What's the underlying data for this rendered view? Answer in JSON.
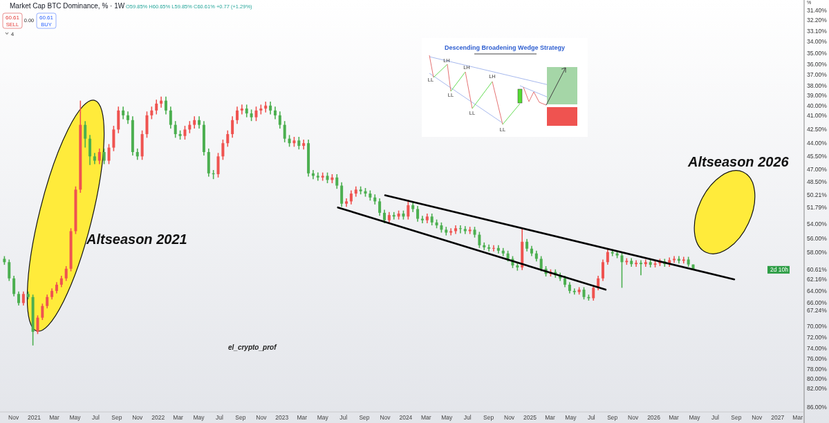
{
  "chart_data": {
    "type": "candlestick",
    "title": "Market Cap BTC Dominance, % · 1W",
    "subtitle": "O59.85% H60.65% L59.85% C60.61% +0.77 (+1.29%)",
    "ylabel": "%",
    "x": [
      "2020-10-05",
      "2020-10-19",
      "2020-11-02",
      "2020-11-16",
      "2020-11-30",
      "2020-12-14",
      "2020-12-28",
      "2021-01-11",
      "2021-01-25",
      "2021-02-08",
      "2021-02-22",
      "2021-03-08",
      "2021-03-22",
      "2021-04-05",
      "2021-04-19",
      "2021-05-03",
      "2021-05-17",
      "2021-05-31",
      "2021-06-14",
      "2021-06-28",
      "2021-07-12",
      "2021-07-26",
      "2021-08-09",
      "2021-08-23",
      "2021-09-06",
      "2021-09-20",
      "2021-10-04",
      "2021-10-18",
      "2021-11-01",
      "2021-11-15",
      "2021-11-29",
      "2021-12-13",
      "2021-12-27",
      "2022-01-10",
      "2022-01-24",
      "2022-02-07",
      "2022-02-21",
      "2022-03-07",
      "2022-03-21",
      "2022-04-04",
      "2022-04-18",
      "2022-05-02",
      "2022-05-16",
      "2022-05-30",
      "2022-06-13",
      "2022-06-27",
      "2022-07-11",
      "2022-07-25",
      "2022-08-08",
      "2022-08-22",
      "2022-09-05",
      "2022-09-19",
      "2022-10-03",
      "2022-10-17",
      "2022-10-31",
      "2022-11-14",
      "2022-11-28",
      "2022-12-12",
      "2022-12-26",
      "2023-01-09",
      "2023-01-23",
      "2023-02-06",
      "2023-02-20",
      "2023-03-06",
      "2023-03-20",
      "2023-04-03",
      "2023-04-17",
      "2023-05-01",
      "2023-05-15",
      "2023-05-29",
      "2023-06-12",
      "2023-06-26",
      "2023-07-10",
      "2023-07-24",
      "2023-08-07",
      "2023-08-21",
      "2023-09-04",
      "2023-09-18",
      "2023-10-02",
      "2023-10-16",
      "2023-10-30",
      "2023-11-13",
      "2023-11-27",
      "2023-12-11",
      "2023-12-25",
      "2024-01-08",
      "2024-01-22",
      "2024-02-05",
      "2024-02-19",
      "2024-03-04",
      "2024-03-18",
      "2024-04-01",
      "2024-04-15",
      "2024-04-29",
      "2024-05-13",
      "2024-05-27",
      "2024-06-10",
      "2024-06-24",
      "2024-07-08",
      "2024-07-22",
      "2024-08-05",
      "2024-08-19",
      "2024-09-02",
      "2024-09-16",
      "2024-09-30",
      "2024-10-14",
      "2024-10-28",
      "2024-11-11",
      "2024-11-25",
      "2024-12-09",
      "2024-12-23",
      "2025-01-06",
      "2025-01-20",
      "2025-02-03",
      "2025-02-17",
      "2025-03-03",
      "2025-03-17",
      "2025-03-31",
      "2025-04-14",
      "2025-04-28",
      "2025-05-12",
      "2025-05-26",
      "2025-06-09",
      "2025-06-23",
      "2025-07-07",
      "2025-07-21",
      "2025-08-04",
      "2025-08-18",
      "2025-09-01",
      "2025-09-15",
      "2025-09-29",
      "2025-10-13",
      "2025-10-27",
      "2025-11-10",
      "2025-11-24",
      "2025-12-08",
      "2025-12-22",
      "2026-01-05",
      "2026-01-19",
      "2026-02-02",
      "2026-02-16",
      "2026-03-02",
      "2026-03-16",
      "2026-03-30",
      "2026-04-13",
      "2026-04-27"
    ],
    "ohlc": [
      [
        59,
        59.9,
        58.6,
        59.5
      ],
      [
        59.5,
        62.4,
        59.1,
        62
      ],
      [
        62,
        64.9,
        61.6,
        64.5
      ],
      [
        64.5,
        66.4,
        64.1,
        66
      ],
      [
        66,
        66.4,
        64.1,
        64.5
      ],
      [
        64.5,
        65.4,
        64.1,
        65
      ],
      [
        65,
        73.5,
        64.6,
        71
      ],
      [
        71,
        71.4,
        68.1,
        68.5
      ],
      [
        68.5,
        68.9,
        66.1,
        66.5
      ],
      [
        66.5,
        66.9,
        64.6,
        65
      ],
      [
        65,
        65.4,
        63.6,
        64
      ],
      [
        64,
        64.4,
        62.6,
        63
      ],
      [
        63,
        63.4,
        61.6,
        62
      ],
      [
        62,
        62.4,
        60.1,
        60.5
      ],
      [
        60.5,
        60.9,
        54.6,
        55
      ],
      [
        55,
        55.4,
        49.1,
        49.5
      ],
      [
        49.5,
        49.9,
        39.5,
        42
      ],
      [
        42,
        44.5,
        41.6,
        43.5
      ],
      [
        43.5,
        46.5,
        43.1,
        45.5
      ],
      [
        45.5,
        46.4,
        45.1,
        46
      ],
      [
        46,
        46.4,
        44.6,
        45
      ],
      [
        45,
        46.4,
        44.6,
        46
      ],
      [
        46,
        46.4,
        44.1,
        44.5
      ],
      [
        44.5,
        44.9,
        42.1,
        42.5
      ],
      [
        42.5,
        42.9,
        40.1,
        40.5
      ],
      [
        40.5,
        41.4,
        40.1,
        41
      ],
      [
        41,
        41.9,
        40.6,
        41.5
      ],
      [
        41.5,
        45.4,
        41.1,
        45
      ],
      [
        45,
        45.9,
        44.6,
        45.5
      ],
      [
        45.5,
        45.9,
        42.6,
        43
      ],
      [
        43,
        43.4,
        40.6,
        41
      ],
      [
        41,
        41.4,
        40.1,
        40.5
      ],
      [
        40.5,
        40.9,
        39.4,
        39.8
      ],
      [
        39.8,
        40.2,
        39.1,
        39.5
      ],
      [
        39.5,
        40.9,
        39.1,
        40.5
      ],
      [
        40.5,
        42.4,
        40.1,
        42
      ],
      [
        42,
        43.4,
        41.6,
        43
      ],
      [
        43,
        43.6,
        42.6,
        43.2
      ],
      [
        43.2,
        43.6,
        42.1,
        42.5
      ],
      [
        42.5,
        42.9,
        41.6,
        42
      ],
      [
        42,
        42.4,
        41.1,
        41.5
      ],
      [
        41.5,
        42.4,
        41.1,
        42
      ],
      [
        42,
        45.4,
        41.6,
        45
      ],
      [
        45,
        47.9,
        44.6,
        47.5
      ],
      [
        47.5,
        48.2,
        47.1,
        47.6
      ],
      [
        47.6,
        48,
        45.1,
        45.5
      ],
      [
        45.5,
        45.9,
        43.6,
        44
      ],
      [
        44,
        44.4,
        42.6,
        43
      ],
      [
        43,
        43.4,
        41.1,
        41.5
      ],
      [
        41.5,
        41.9,
        40.1,
        40.5
      ],
      [
        40.5,
        40.9,
        39.9,
        40.3
      ],
      [
        40.3,
        41.2,
        39.9,
        40.8
      ],
      [
        40.8,
        41.6,
        40.4,
        41.2
      ],
      [
        41.2,
        41.6,
        40.1,
        40.5
      ],
      [
        40.5,
        40.9,
        39.9,
        40.3
      ],
      [
        40.3,
        40.7,
        39.6,
        40
      ],
      [
        40,
        40.9,
        39.6,
        40.5
      ],
      [
        40.5,
        41.4,
        40.1,
        41
      ],
      [
        41,
        42.4,
        40.6,
        42
      ],
      [
        42,
        43.9,
        41.6,
        43.5
      ],
      [
        43.5,
        44.4,
        43.1,
        44
      ],
      [
        44,
        44.4,
        43.3,
        43.7
      ],
      [
        43.7,
        44.7,
        43.3,
        44.3
      ],
      [
        44.3,
        44.7,
        43.6,
        44
      ],
      [
        44,
        47.9,
        43.6,
        47.5
      ],
      [
        47.5,
        48.2,
        47.1,
        47.8
      ],
      [
        47.8,
        48.4,
        47.4,
        48
      ],
      [
        48,
        48.4,
        47.4,
        47.8
      ],
      [
        47.8,
        48.7,
        47.4,
        48.3
      ],
      [
        48.3,
        48.7,
        47.6,
        48
      ],
      [
        48,
        49.4,
        47.6,
        49
      ],
      [
        49,
        51.7,
        48.6,
        51.3
      ],
      [
        51.3,
        51.7,
        50.6,
        51
      ],
      [
        51,
        51.4,
        49.6,
        50
      ],
      [
        50,
        50.4,
        49.1,
        49.5
      ],
      [
        49.5,
        50.1,
        49.1,
        49.7
      ],
      [
        49.7,
        50.4,
        49.3,
        50
      ],
      [
        50,
        50.9,
        49.6,
        50.5
      ],
      [
        50.5,
        51.4,
        50.1,
        51
      ],
      [
        51,
        52.9,
        50.6,
        52.5
      ],
      [
        52.5,
        53.9,
        52.1,
        53.5
      ],
      [
        53.5,
        53.9,
        52.4,
        52.8
      ],
      [
        52.8,
        53.4,
        52.4,
        53
      ],
      [
        53,
        53.4,
        52.2,
        52.6
      ],
      [
        52.6,
        53.4,
        52.2,
        53
      ],
      [
        53,
        53.4,
        50.8,
        51.5
      ],
      [
        51.5,
        52.4,
        51.1,
        52
      ],
      [
        52,
        53.7,
        51.6,
        53.3
      ],
      [
        53.3,
        53.9,
        52.9,
        53.5
      ],
      [
        53.5,
        53.9,
        52.6,
        53
      ],
      [
        53,
        54.2,
        52.6,
        53.8
      ],
      [
        53.8,
        54.6,
        53.4,
        54.2
      ],
      [
        54.2,
        55.2,
        53.8,
        54.8
      ],
      [
        54.8,
        55.6,
        54.4,
        55.2
      ],
      [
        55.2,
        55.6,
        54.6,
        55
      ],
      [
        55,
        55.4,
        54.2,
        54.6
      ],
      [
        54.6,
        55.3,
        54.2,
        54.7
      ],
      [
        54.7,
        55.4,
        54.3,
        55
      ],
      [
        55,
        55.4,
        54.4,
        54.8
      ],
      [
        54.8,
        55.9,
        54.4,
        55.5
      ],
      [
        55.5,
        57.4,
        55.1,
        57
      ],
      [
        57,
        57.7,
        56.6,
        57.3
      ],
      [
        57.3,
        57.9,
        56.9,
        57.5
      ],
      [
        57.5,
        57.9,
        57,
        57.4
      ],
      [
        57.4,
        58.2,
        57,
        57.8
      ],
      [
        57.8,
        58.6,
        57.4,
        58.2
      ],
      [
        58.2,
        59.4,
        57.8,
        59
      ],
      [
        59,
        60.4,
        58.6,
        60
      ],
      [
        60,
        60.8,
        59.6,
        60.3
      ],
      [
        60.3,
        60.7,
        54.5,
        56.5
      ],
      [
        56.5,
        57.9,
        56.1,
        57.5
      ],
      [
        57.5,
        58.6,
        57.1,
        58.2
      ],
      [
        58.2,
        59.4,
        57.8,
        59
      ],
      [
        59,
        60.9,
        58.6,
        60.5
      ],
      [
        60.5,
        61.7,
        60.1,
        61.3
      ],
      [
        61.3,
        61.7,
        60.6,
        61
      ],
      [
        61,
        61.9,
        60.6,
        61.5
      ],
      [
        61.5,
        62.4,
        61.1,
        62
      ],
      [
        62,
        63.4,
        61.6,
        63
      ],
      [
        63,
        64.4,
        62.6,
        64
      ],
      [
        64,
        64.6,
        63.6,
        64.2
      ],
      [
        64.2,
        64.6,
        63.4,
        63.8
      ],
      [
        63.8,
        65.4,
        63.4,
        65
      ],
      [
        65,
        65.6,
        64.6,
        65.2
      ],
      [
        65.2,
        65.6,
        63.1,
        63.5
      ],
      [
        63.5,
        63.9,
        61.6,
        62
      ],
      [
        62,
        62.4,
        59.1,
        59.5
      ],
      [
        59.5,
        59.9,
        57.6,
        58
      ],
      [
        58,
        58.6,
        57.6,
        58.2
      ],
      [
        58.2,
        58.9,
        57.8,
        58.5
      ],
      [
        58.5,
        63.5,
        58.1,
        59.5
      ],
      [
        59.5,
        59.9,
        58.9,
        59.3
      ],
      [
        59.3,
        60.2,
        58.9,
        59.8
      ],
      [
        59.8,
        60.2,
        59.2,
        59.6
      ],
      [
        59.6,
        61.5,
        59.2,
        59.8
      ],
      [
        59.8,
        60.2,
        59.1,
        59.5
      ],
      [
        59.5,
        60.3,
        59.1,
        59.9
      ],
      [
        59.9,
        60.3,
        59.3,
        59.7
      ],
      [
        59.7,
        60.1,
        59,
        59.4
      ],
      [
        59.4,
        60.2,
        59,
        59.8
      ],
      [
        59.8,
        60.2,
        58.8,
        59.2
      ],
      [
        59.2,
        59.6,
        58.6,
        59
      ],
      [
        59,
        59.7,
        58.6,
        59.3
      ],
      [
        59.3,
        59.7,
        58.7,
        59.1
      ],
      [
        59.1,
        60.2,
        58.7,
        59.85
      ],
      [
        59.85,
        60.65,
        59.85,
        60.61
      ]
    ],
    "colors": [
      "#4caf50",
      "#4caf50",
      "#4caf50",
      "#4caf50",
      "#ef5350",
      "#4caf50",
      "#4caf50",
      "#ef5350",
      "#ef5350",
      "#ef5350",
      "#ef5350",
      "#ef5350",
      "#ef5350",
      "#ef5350",
      "#ef5350",
      "#ef5350",
      "#ef5350",
      "#4caf50",
      "#4caf50",
      "#4caf50",
      "#ef5350",
      "#4caf50",
      "#ef5350",
      "#ef5350",
      "#ef5350",
      "#4caf50",
      "#4caf50",
      "#4caf50",
      "#4caf50",
      "#ef5350",
      "#ef5350",
      "#ef5350",
      "#ef5350",
      "#ef5350",
      "#4caf50",
      "#4caf50",
      "#4caf50",
      "#4caf50",
      "#ef5350",
      "#ef5350",
      "#ef5350",
      "#4caf50",
      "#4caf50",
      "#4caf50",
      "#4caf50",
      "#ef5350",
      "#ef5350",
      "#ef5350",
      "#ef5350",
      "#ef5350",
      "#ef5350",
      "#4caf50",
      "#4caf50",
      "#ef5350",
      "#ef5350",
      "#ef5350",
      "#4caf50",
      "#4caf50",
      "#4caf50",
      "#4caf50",
      "#4caf50",
      "#ef5350",
      "#4caf50",
      "#ef5350",
      "#4caf50",
      "#4caf50",
      "#4caf50",
      "#ef5350",
      "#4caf50",
      "#ef5350",
      "#4caf50",
      "#4caf50",
      "#ef5350",
      "#ef5350",
      "#ef5350",
      "#4caf50",
      "#4caf50",
      "#4caf50",
      "#4caf50",
      "#4caf50",
      "#4caf50",
      "#ef5350",
      "#4caf50",
      "#ef5350",
      "#4caf50",
      "#ef5350",
      "#4caf50",
      "#4caf50",
      "#4caf50",
      "#ef5350",
      "#4caf50",
      "#4caf50",
      "#4caf50",
      "#4caf50",
      "#ef5350",
      "#ef5350",
      "#4caf50",
      "#4caf50",
      "#ef5350",
      "#4caf50",
      "#4caf50",
      "#4caf50",
      "#4caf50",
      "#ef5350",
      "#4caf50",
      "#4caf50",
      "#4caf50",
      "#4caf50",
      "#4caf50",
      "#ef5350",
      "#4caf50",
      "#4caf50",
      "#4caf50",
      "#4caf50",
      "#4caf50",
      "#ef5350",
      "#4caf50",
      "#4caf50",
      "#4caf50",
      "#4caf50",
      "#4caf50",
      "#ef5350",
      "#4caf50",
      "#4caf50",
      "#ef5350",
      "#ef5350",
      "#ef5350",
      "#ef5350",
      "#4caf50",
      "#4caf50",
      "#4caf50",
      "#ef5350",
      "#4caf50",
      "#ef5350",
      "#4caf50",
      "#ef5350",
      "#4caf50",
      "#ef5350",
      "#ef5350",
      "#4caf50",
      "#ef5350",
      "#ef5350",
      "#4caf50",
      "#ef5350",
      "#4caf50",
      "#4caf50"
    ],
    "series": [
      {
        "type": "line",
        "color": "#000000",
        "x": [
          "2023-11-01",
          "2026-08-26"
        ],
        "values": [
          50.21,
          62.16
        ]
      },
      {
        "type": "line",
        "color": "#000000",
        "x": [
          "2023-06-15",
          "2025-08-12"
        ],
        "values": [
          51.79,
          63.8
        ]
      }
    ],
    "xlim": [
      "2020-09-22",
      "2027-03-20"
    ],
    "xticks": [
      {
        "value": "2020-11-01",
        "label": "Nov"
      },
      {
        "value": "2021-01-01",
        "label": "2021"
      },
      {
        "value": "2021-03-01",
        "label": "Mar"
      },
      {
        "value": "2021-05-01",
        "label": "May"
      },
      {
        "value": "2021-07-01",
        "label": "Jul"
      },
      {
        "value": "2021-09-01",
        "label": "Sep"
      },
      {
        "value": "2021-11-01",
        "label": "Nov"
      },
      {
        "value": "2022-01-01",
        "label": "2022"
      },
      {
        "value": "2022-03-01",
        "label": "Mar"
      },
      {
        "value": "2022-05-01",
        "label": "May"
      },
      {
        "value": "2022-07-01",
        "label": "Jul"
      },
      {
        "value": "2022-09-01",
        "label": "Sep"
      },
      {
        "value": "2022-11-01",
        "label": "Nov"
      },
      {
        "value": "2023-01-01",
        "label": "2023"
      },
      {
        "value": "2023-03-01",
        "label": "Mar"
      },
      {
        "value": "2023-05-01",
        "label": "May"
      },
      {
        "value": "2023-07-01",
        "label": "Jul"
      },
      {
        "value": "2023-09-01",
        "label": "Sep"
      },
      {
        "value": "2023-11-01",
        "label": "Nov"
      },
      {
        "value": "2024-01-01",
        "label": "2024"
      },
      {
        "value": "2024-03-01",
        "label": "Mar"
      },
      {
        "value": "2024-05-01",
        "label": "May"
      },
      {
        "value": "2024-07-01",
        "label": "Jul"
      },
      {
        "value": "2024-09-01",
        "label": "Sep"
      },
      {
        "value": "2024-11-01",
        "label": "Nov"
      },
      {
        "value": "2025-01-01",
        "label": "2025"
      },
      {
        "value": "2025-03-01",
        "label": "Mar"
      },
      {
        "value": "2025-05-01",
        "label": "May"
      },
      {
        "value": "2025-07-01",
        "label": "Jul"
      },
      {
        "value": "2025-09-01",
        "label": "Sep"
      },
      {
        "value": "2025-11-01",
        "label": "Nov"
      },
      {
        "value": "2026-01-01",
        "label": "2026"
      },
      {
        "value": "2026-03-01",
        "label": "Mar"
      },
      {
        "value": "2026-05-01",
        "label": "May"
      },
      {
        "value": "2026-07-01",
        "label": "Jul"
      },
      {
        "value": "2026-09-01",
        "label": "Sep"
      },
      {
        "value": "2026-11-01",
        "label": "Nov"
      },
      {
        "value": "2027-01-01",
        "label": "2027"
      },
      {
        "value": "2027-03-01",
        "label": "Mar"
      }
    ],
    "ylim": [
      87,
      30.6
    ],
    "log": true,
    "yticks": [
      {
        "value": 31.4,
        "label": "31.40%"
      },
      {
        "value": 32.2,
        "label": "32.20%"
      },
      {
        "value": 33.1,
        "label": "33.10%"
      },
      {
        "value": 34,
        "label": "34.00%"
      },
      {
        "value": 35,
        "label": "35.00%"
      },
      {
        "value": 36,
        "label": "36.00%"
      },
      {
        "value": 37,
        "label": "37.00%"
      },
      {
        "value": 38,
        "label": "38.00%"
      },
      {
        "value": 39,
        "label": "39.00%"
      },
      {
        "value": 40,
        "label": "40.00%"
      },
      {
        "value": 41,
        "label": "41.00%"
      },
      {
        "value": 42.5,
        "label": "42.50%"
      },
      {
        "value": 44,
        "label": "44.00%"
      },
      {
        "value": 45.5,
        "label": "45.50%"
      },
      {
        "value": 47,
        "label": "47.00%"
      },
      {
        "value": 48.5,
        "label": "48.50%"
      },
      {
        "value": 50.21,
        "label": "50.21%"
      },
      {
        "value": 51.79,
        "label": "51.79%"
      },
      {
        "value": 54,
        "label": "54.00%"
      },
      {
        "value": 56,
        "label": "56.00%"
      },
      {
        "value": 58,
        "label": "58.00%"
      },
      {
        "value": 60.61,
        "label": "60.61%"
      },
      {
        "value": 62.16,
        "label": "62.16%"
      },
      {
        "value": 64,
        "label": "64.00%"
      },
      {
        "value": 66,
        "label": "66.00%"
      },
      {
        "value": 67.24,
        "label": "67.24%"
      },
      {
        "value": 70,
        "label": "70.00%"
      },
      {
        "value": 72,
        "label": "72.00%"
      },
      {
        "value": 74,
        "label": "74.00%"
      },
      {
        "value": 76,
        "label": "76.00%"
      },
      {
        "value": 78,
        "label": "78.00%"
      },
      {
        "value": 80,
        "label": "80.00%"
      },
      {
        "value": 82,
        "label": "82.00%"
      },
      {
        "value": 86,
        "label": "86.00%"
      }
    ],
    "annotations": [
      "Altseason 2021",
      "Altseason 2026",
      "el_crypto_prof",
      "Descending Broadening Wedge Strategy",
      "LL",
      "LH",
      "LL",
      "LH",
      "LL",
      "LH",
      "LL",
      "60.61",
      "SELL",
      "0.00",
      "60.61",
      "BUY",
      "4",
      "2d 10h"
    ]
  }
}
